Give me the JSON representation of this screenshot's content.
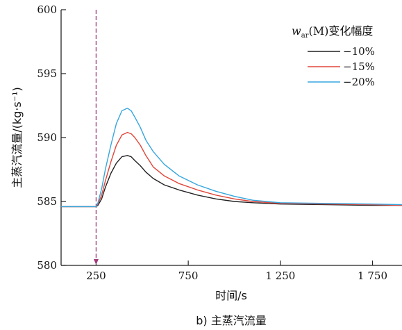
{
  "chart_data": {
    "type": "line",
    "caption": "b) 主蒸汽流量",
    "xlabel": "时间/s",
    "ylabel": "主蒸汽流量/(kg·s⁻¹)",
    "xlim": [
      60,
      1910
    ],
    "ylim": [
      580,
      600
    ],
    "xticks": [
      250,
      750,
      1250,
      1750
    ],
    "xtick_labels": [
      "250",
      "750",
      "1 250",
      "1 750"
    ],
    "yticks": [
      580,
      585,
      590,
      595,
      600
    ],
    "ytick_labels": [
      "580",
      "585",
      "590",
      "595",
      "600"
    ],
    "grid": false,
    "legend_position": "top-right",
    "legend_title": "w_ar(M)变化幅度",
    "legend_title_main": "w",
    "legend_title_sub": "ar",
    "legend_title_rest": "(M)变化幅度",
    "event_marker": {
      "x": 250,
      "color": "#a0397a"
    },
    "series": [
      {
        "name": "−10%",
        "color": "#222222",
        "x": [
          60,
          250,
          260,
          280,
          300,
          330,
          360,
          390,
          420,
          440,
          460,
          490,
          520,
          560,
          620,
          700,
          800,
          900,
          1000,
          1100,
          1250,
          1500,
          1750,
          1910
        ],
        "y": [
          584.6,
          584.6,
          584.7,
          585.2,
          586.1,
          587.2,
          588.0,
          588.5,
          588.6,
          588.5,
          588.2,
          587.8,
          587.3,
          586.8,
          586.3,
          585.9,
          585.5,
          585.2,
          585.0,
          584.9,
          584.8,
          584.75,
          584.7,
          584.7
        ]
      },
      {
        "name": "−15%",
        "color": "#e0463a",
        "x": [
          60,
          250,
          260,
          280,
          300,
          330,
          360,
          390,
          420,
          440,
          460,
          490,
          520,
          560,
          620,
          700,
          800,
          900,
          1000,
          1100,
          1250,
          1500,
          1750,
          1910
        ],
        "y": [
          584.6,
          584.6,
          584.8,
          585.5,
          586.6,
          588.1,
          589.4,
          590.2,
          590.4,
          590.3,
          590.0,
          589.4,
          588.6,
          587.7,
          587.0,
          586.4,
          585.9,
          585.5,
          585.2,
          585.0,
          584.85,
          584.8,
          584.75,
          584.7
        ]
      },
      {
        "name": "−20%",
        "color": "#36a6de",
        "x": [
          60,
          250,
          260,
          280,
          300,
          330,
          360,
          390,
          420,
          440,
          460,
          490,
          520,
          560,
          620,
          700,
          800,
          900,
          1000,
          1100,
          1250,
          1500,
          1750,
          1910
        ],
        "y": [
          584.6,
          584.6,
          584.9,
          586.0,
          587.5,
          589.4,
          591.1,
          592.1,
          592.3,
          592.1,
          591.6,
          590.8,
          589.8,
          588.9,
          587.9,
          587.0,
          586.3,
          585.8,
          585.4,
          585.1,
          584.9,
          584.85,
          584.8,
          584.75
        ]
      }
    ]
  }
}
